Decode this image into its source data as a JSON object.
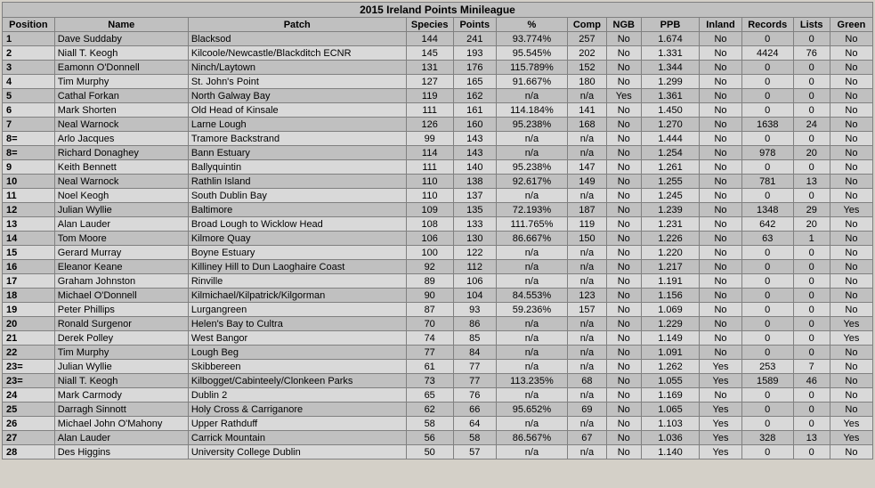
{
  "title": "2015 Ireland Points Minileague",
  "columns": [
    "Position",
    "Name",
    "Patch",
    "Species",
    "Points",
    "%",
    "Comp",
    "NGB",
    "PPB",
    "Inland",
    "Records",
    "Lists",
    "Green"
  ],
  "rows": [
    {
      "pos": "1",
      "name": "Dave Suddaby",
      "patch": "Blacksod",
      "species": "144",
      "points": "241",
      "pct": "93.774%",
      "comp": "257",
      "ngb": "No",
      "ppb": "1.674",
      "inland": "No",
      "records": "0",
      "lists": "0",
      "green": "No"
    },
    {
      "pos": "2",
      "name": "Niall T. Keogh",
      "patch": "Kilcoole/Newcastle/Blackditch ECNR",
      "species": "145",
      "points": "193",
      "pct": "95.545%",
      "comp": "202",
      "ngb": "No",
      "ppb": "1.331",
      "inland": "No",
      "records": "4424",
      "lists": "76",
      "green": "No"
    },
    {
      "pos": "3",
      "name": "Eamonn O'Donnell",
      "patch": "Ninch/Laytown",
      "species": "131",
      "points": "176",
      "pct": "115.789%",
      "comp": "152",
      "ngb": "No",
      "ppb": "1.344",
      "inland": "No",
      "records": "0",
      "lists": "0",
      "green": "No"
    },
    {
      "pos": "4",
      "name": "Tim Murphy",
      "patch": "St. John's Point",
      "species": "127",
      "points": "165",
      "pct": "91.667%",
      "comp": "180",
      "ngb": "No",
      "ppb": "1.299",
      "inland": "No",
      "records": "0",
      "lists": "0",
      "green": "No"
    },
    {
      "pos": "5",
      "name": "Cathal Forkan",
      "patch": "North Galway Bay",
      "species": "119",
      "points": "162",
      "pct": "n/a",
      "comp": "n/a",
      "ngb": "Yes",
      "ppb": "1.361",
      "inland": "No",
      "records": "0",
      "lists": "0",
      "green": "No"
    },
    {
      "pos": "6",
      "name": "Mark Shorten",
      "patch": "Old Head of Kinsale",
      "species": "111",
      "points": "161",
      "pct": "114.184%",
      "comp": "141",
      "ngb": "No",
      "ppb": "1.450",
      "inland": "No",
      "records": "0",
      "lists": "0",
      "green": "No"
    },
    {
      "pos": "7",
      "name": "Neal Warnock",
      "patch": "Larne Lough",
      "species": "126",
      "points": "160",
      "pct": "95.238%",
      "comp": "168",
      "ngb": "No",
      "ppb": "1.270",
      "inland": "No",
      "records": "1638",
      "lists": "24",
      "green": "No"
    },
    {
      "pos": "8=",
      "name": "Arlo Jacques",
      "patch": "Tramore Backstrand",
      "species": "99",
      "points": "143",
      "pct": "n/a",
      "comp": "n/a",
      "ngb": "No",
      "ppb": "1.444",
      "inland": "No",
      "records": "0",
      "lists": "0",
      "green": "No"
    },
    {
      "pos": "8=",
      "name": "Richard Donaghey",
      "patch": "Bann Estuary",
      "species": "114",
      "points": "143",
      "pct": "n/a",
      "comp": "n/a",
      "ngb": "No",
      "ppb": "1.254",
      "inland": "No",
      "records": "978",
      "lists": "20",
      "green": "No"
    },
    {
      "pos": "9",
      "name": "Keith Bennett",
      "patch": "Ballyquintin",
      "species": "111",
      "points": "140",
      "pct": "95.238%",
      "comp": "147",
      "ngb": "No",
      "ppb": "1.261",
      "inland": "No",
      "records": "0",
      "lists": "0",
      "green": "No"
    },
    {
      "pos": "10",
      "name": "Neal Warnock",
      "patch": "Rathlin Island",
      "species": "110",
      "points": "138",
      "pct": "92.617%",
      "comp": "149",
      "ngb": "No",
      "ppb": "1.255",
      "inland": "No",
      "records": "781",
      "lists": "13",
      "green": "No"
    },
    {
      "pos": "11",
      "name": "Noel Keogh",
      "patch": "South Dublin Bay",
      "species": "110",
      "points": "137",
      "pct": "n/a",
      "comp": "n/a",
      "ngb": "No",
      "ppb": "1.245",
      "inland": "No",
      "records": "0",
      "lists": "0",
      "green": "No"
    },
    {
      "pos": "12",
      "name": "Julian Wyllie",
      "patch": "Baltimore",
      "species": "109",
      "points": "135",
      "pct": "72.193%",
      "comp": "187",
      "ngb": "No",
      "ppb": "1.239",
      "inland": "No",
      "records": "1348",
      "lists": "29",
      "green": "Yes"
    },
    {
      "pos": "13",
      "name": "Alan Lauder",
      "patch": "Broad Lough to Wicklow Head",
      "species": "108",
      "points": "133",
      "pct": "111.765%",
      "comp": "119",
      "ngb": "No",
      "ppb": "1.231",
      "inland": "No",
      "records": "642",
      "lists": "20",
      "green": "No"
    },
    {
      "pos": "14",
      "name": "Tom Moore",
      "patch": "Kilmore Quay",
      "species": "106",
      "points": "130",
      "pct": "86.667%",
      "comp": "150",
      "ngb": "No",
      "ppb": "1.226",
      "inland": "No",
      "records": "63",
      "lists": "1",
      "green": "No"
    },
    {
      "pos": "15",
      "name": "Gerard Murray",
      "patch": "Boyne Estuary",
      "species": "100",
      "points": "122",
      "pct": "n/a",
      "comp": "n/a",
      "ngb": "No",
      "ppb": "1.220",
      "inland": "No",
      "records": "0",
      "lists": "0",
      "green": "No"
    },
    {
      "pos": "16",
      "name": "Eleanor Keane",
      "patch": "Killiney Hill to Dun Laoghaire Coast",
      "species": "92",
      "points": "112",
      "pct": "n/a",
      "comp": "n/a",
      "ngb": "No",
      "ppb": "1.217",
      "inland": "No",
      "records": "0",
      "lists": "0",
      "green": "No"
    },
    {
      "pos": "17",
      "name": "Graham Johnston",
      "patch": "Rinville",
      "species": "89",
      "points": "106",
      "pct": "n/a",
      "comp": "n/a",
      "ngb": "No",
      "ppb": "1.191",
      "inland": "No",
      "records": "0",
      "lists": "0",
      "green": "No"
    },
    {
      "pos": "18",
      "name": "Michael O'Donnell",
      "patch": "Kilmichael/Kilpatrick/Kilgorman",
      "species": "90",
      "points": "104",
      "pct": "84.553%",
      "comp": "123",
      "ngb": "No",
      "ppb": "1.156",
      "inland": "No",
      "records": "0",
      "lists": "0",
      "green": "No"
    },
    {
      "pos": "19",
      "name": "Peter Phillips",
      "patch": "Lurgangreen",
      "species": "87",
      "points": "93",
      "pct": "59.236%",
      "comp": "157",
      "ngb": "No",
      "ppb": "1.069",
      "inland": "No",
      "records": "0",
      "lists": "0",
      "green": "No"
    },
    {
      "pos": "20",
      "name": "Ronald Surgenor",
      "patch": "Helen's Bay to Cultra",
      "species": "70",
      "points": "86",
      "pct": "n/a",
      "comp": "n/a",
      "ngb": "No",
      "ppb": "1.229",
      "inland": "No",
      "records": "0",
      "lists": "0",
      "green": "Yes"
    },
    {
      "pos": "21",
      "name": "Derek Polley",
      "patch": "West Bangor",
      "species": "74",
      "points": "85",
      "pct": "n/a",
      "comp": "n/a",
      "ngb": "No",
      "ppb": "1.149",
      "inland": "No",
      "records": "0",
      "lists": "0",
      "green": "Yes"
    },
    {
      "pos": "22",
      "name": "Tim Murphy",
      "patch": "Lough Beg",
      "species": "77",
      "points": "84",
      "pct": "n/a",
      "comp": "n/a",
      "ngb": "No",
      "ppb": "1.091",
      "inland": "No",
      "records": "0",
      "lists": "0",
      "green": "No"
    },
    {
      "pos": "23=",
      "name": "Julian Wyllie",
      "patch": "Skibbereen",
      "species": "61",
      "points": "77",
      "pct": "n/a",
      "comp": "n/a",
      "ngb": "No",
      "ppb": "1.262",
      "inland": "Yes",
      "records": "253",
      "lists": "7",
      "green": "No"
    },
    {
      "pos": "23=",
      "name": "Niall T. Keogh",
      "patch": "Kilbogget/Cabinteely/Clonkeen Parks",
      "species": "73",
      "points": "77",
      "pct": "113.235%",
      "comp": "68",
      "ngb": "No",
      "ppb": "1.055",
      "inland": "Yes",
      "records": "1589",
      "lists": "46",
      "green": "No"
    },
    {
      "pos": "24",
      "name": "Mark Carmody",
      "patch": "Dublin 2",
      "species": "65",
      "points": "76",
      "pct": "n/a",
      "comp": "n/a",
      "ngb": "No",
      "ppb": "1.169",
      "inland": "No",
      "records": "0",
      "lists": "0",
      "green": "No"
    },
    {
      "pos": "25",
      "name": "Darragh Sinnott",
      "patch": "Holy Cross & Carriganore",
      "species": "62",
      "points": "66",
      "pct": "95.652%",
      "comp": "69",
      "ngb": "No",
      "ppb": "1.065",
      "inland": "Yes",
      "records": "0",
      "lists": "0",
      "green": "No"
    },
    {
      "pos": "26",
      "name": "Michael John O'Mahony",
      "patch": "Upper Rathduff",
      "species": "58",
      "points": "64",
      "pct": "n/a",
      "comp": "n/a",
      "ngb": "No",
      "ppb": "1.103",
      "inland": "Yes",
      "records": "0",
      "lists": "0",
      "green": "Yes"
    },
    {
      "pos": "27",
      "name": "Alan Lauder",
      "patch": "Carrick Mountain",
      "species": "56",
      "points": "58",
      "pct": "86.567%",
      "comp": "67",
      "ngb": "No",
      "ppb": "1.036",
      "inland": "Yes",
      "records": "328",
      "lists": "13",
      "green": "Yes"
    },
    {
      "pos": "28",
      "name": "Des Higgins",
      "patch": "University College Dublin",
      "species": "50",
      "points": "57",
      "pct": "n/a",
      "comp": "n/a",
      "ngb": "No",
      "ppb": "1.140",
      "inland": "Yes",
      "records": "0",
      "lists": "0",
      "green": "No"
    }
  ]
}
